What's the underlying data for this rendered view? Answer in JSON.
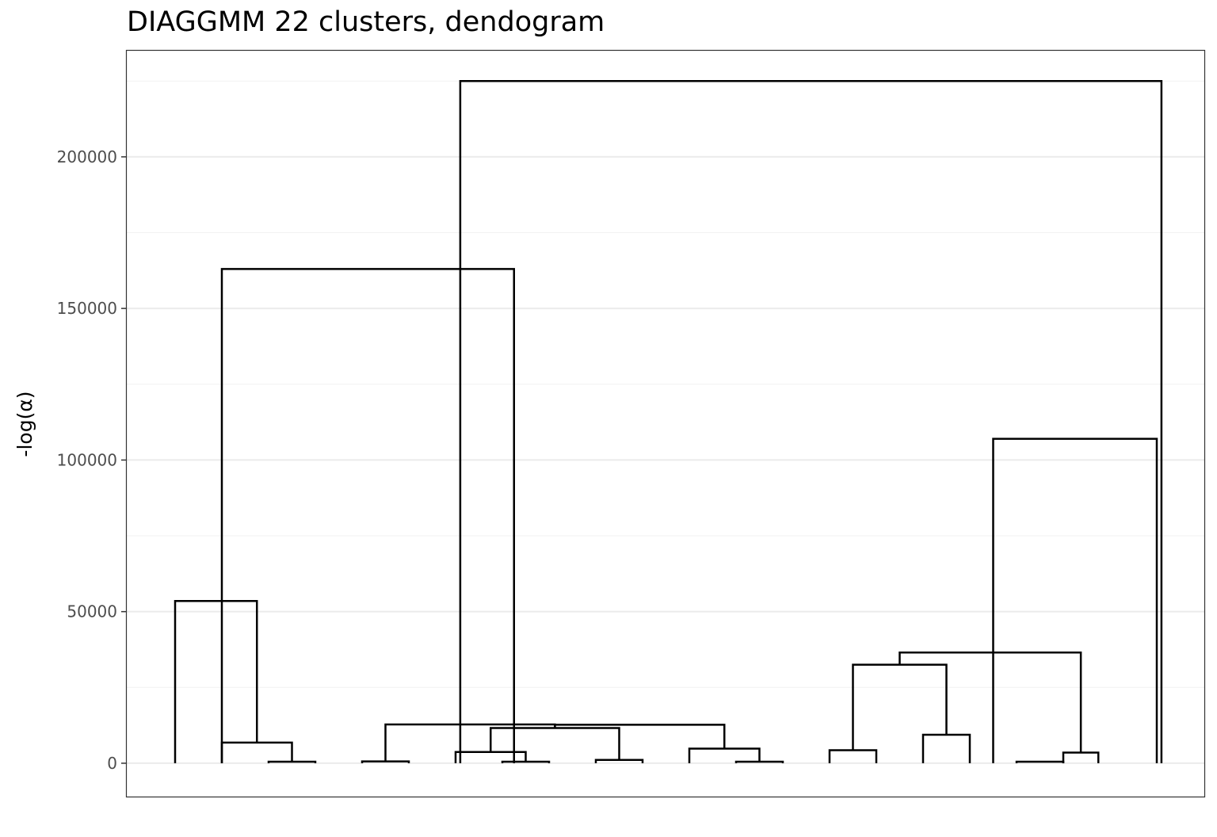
{
  "chart_data": {
    "type": "dendrogram",
    "title": "DIAGGMM 22 clusters, dendogram",
    "ylabel": "-log(α)",
    "xlabel": "",
    "ylim": [
      -11000,
      235000
    ],
    "y_ticks": [
      0,
      50000,
      100000,
      150000,
      200000
    ],
    "y_tick_labels": [
      "0",
      "50000",
      "100000",
      "150000",
      "200000"
    ],
    "grid": true,
    "leaf_count": 22,
    "merges": [
      {
        "left": 3,
        "right": 4,
        "height": 500
      },
      {
        "left": 2,
        "right": 3.5,
        "height": 6800
      },
      {
        "left": 1,
        "right": 2.75,
        "height": 53500
      },
      {
        "left": 5,
        "right": 6,
        "height": 600
      },
      {
        "left": 8,
        "right": 9,
        "height": 500
      },
      {
        "left": 7,
        "right": 8.5,
        "height": 3700
      },
      {
        "left": 10,
        "right": 11,
        "height": 1100
      },
      {
        "left": 7.75,
        "right": 10.5,
        "height": 11600
      },
      {
        "left": 13,
        "right": 14,
        "height": 500
      },
      {
        "left": 12,
        "right": 13.5,
        "height": 4800
      },
      {
        "left": 9.125,
        "right": 12.75,
        "height": 12700
      },
      {
        "left": 5.5,
        "right": 9.125,
        "height": 12800
      },
      {
        "left": 2,
        "right": 8.25,
        "height": 163000
      },
      {
        "left": 15,
        "right": 16,
        "height": 4300
      },
      {
        "left": 17,
        "right": 18,
        "height": 9400
      },
      {
        "left": 15.5,
        "right": 17.5,
        "height": 32500
      },
      {
        "left": 19,
        "right": 20,
        "height": 500
      },
      {
        "left": 20,
        "right": 20.75,
        "height": 3500
      },
      {
        "left": 16.5,
        "right": 20.375,
        "height": 36500
      },
      {
        "left": 18.5,
        "right": 22,
        "height": 107000
      },
      {
        "left": 7.1,
        "right": 22.1,
        "height": 225000
      }
    ]
  }
}
